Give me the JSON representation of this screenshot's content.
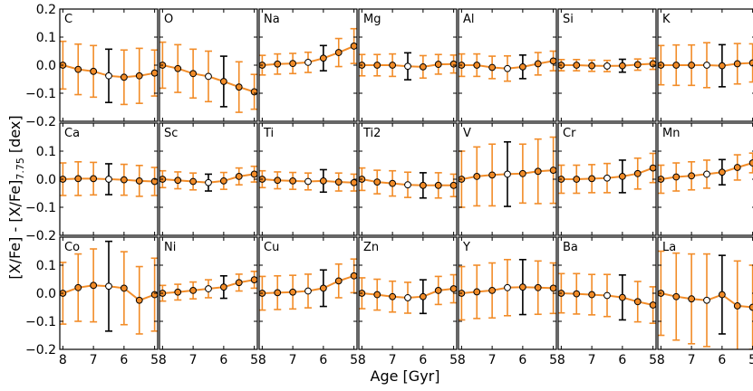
{
  "figure": {
    "xlabel": "Age [Gyr]",
    "ylabel_main": "[X/Fe] - [X/Fe]",
    "ylabel_sub": "7.75",
    "ylabel_unit": " [dex]",
    "colors": {
      "fit": "#f28c28",
      "err_orange": "#f28c28",
      "err_black": "#000000",
      "marker_fill": "#f28c28",
      "marker_open": "#ffffff",
      "marker_edge": "#000000"
    },
    "xlim": [
      8.1,
      4.9
    ],
    "ylim": [
      -0.2,
      0.2
    ],
    "xticks": [
      "8",
      "7",
      "6",
      "5"
    ],
    "xtick_values": [
      8,
      7,
      6,
      5
    ],
    "yticks": [
      "0.2",
      "0.1",
      "0.0",
      "−0.1",
      "−0.2"
    ],
    "ytick_values": [
      0.2,
      0.1,
      0.0,
      -0.1,
      -0.2
    ]
  },
  "chart_data": {
    "type": "scatter",
    "grid": false,
    "ages": [
      8.0,
      7.5,
      7.0,
      6.5,
      6.0,
      5.5,
      5.0
    ],
    "open_index": 3,
    "panels": [
      {
        "label": "C",
        "values": [
          0.0,
          -0.015,
          -0.022,
          -0.038,
          -0.043,
          -0.038,
          -0.028
        ],
        "errors": [
          0.085,
          0.09,
          0.092,
          0.095,
          0.097,
          0.098,
          0.082
        ],
        "black_index": 3
      },
      {
        "label": "O",
        "values": [
          0.0,
          -0.012,
          -0.03,
          -0.04,
          -0.058,
          -0.078,
          -0.095
        ],
        "errors": [
          0.082,
          0.085,
          0.087,
          0.09,
          0.09,
          0.09,
          0.062
        ],
        "black_index": 4
      },
      {
        "label": "Na",
        "values": [
          0.0,
          0.004,
          0.006,
          0.01,
          0.025,
          0.045,
          0.068
        ],
        "errors": [
          0.035,
          0.036,
          0.036,
          0.036,
          0.045,
          0.05,
          0.062
        ],
        "black_index": 4
      },
      {
        "label": "Mg",
        "values": [
          0.0,
          0.0,
          0.0,
          -0.004,
          -0.006,
          0.003,
          0.004
        ],
        "errors": [
          0.038,
          0.038,
          0.04,
          0.048,
          0.04,
          0.035,
          0.032
        ],
        "black_index": 3
      },
      {
        "label": "Al",
        "values": [
          0.0,
          0.0,
          -0.008,
          -0.012,
          -0.006,
          0.005,
          0.015
        ],
        "errors": [
          0.04,
          0.04,
          0.04,
          0.045,
          0.042,
          0.04,
          0.035
        ],
        "black_index": 4
      },
      {
        "label": "Si",
        "values": [
          0.0,
          0.0,
          -0.002,
          -0.003,
          -0.002,
          0.002,
          0.005
        ],
        "errors": [
          0.02,
          0.02,
          0.02,
          0.02,
          0.023,
          0.02,
          0.02
        ],
        "black_index": 4
      },
      {
        "label": "K",
        "values": [
          0.0,
          0.0,
          0.0,
          0.0,
          -0.002,
          0.005,
          0.008
        ],
        "errors": [
          0.07,
          0.072,
          0.072,
          0.08,
          0.075,
          0.072,
          0.068
        ],
        "black_index": 4
      },
      {
        "label": "Ca",
        "values": [
          0.0,
          0.002,
          0.002,
          0.0,
          -0.002,
          -0.006,
          -0.008
        ],
        "errors": [
          0.058,
          0.06,
          0.058,
          0.055,
          0.055,
          0.055,
          0.05
        ],
        "black_index": 3
      },
      {
        "label": "Sc",
        "values": [
          0.0,
          -0.004,
          -0.008,
          -0.012,
          -0.006,
          0.01,
          0.018
        ],
        "errors": [
          0.03,
          0.03,
          0.03,
          0.03,
          0.03,
          0.03,
          0.028
        ],
        "black_index": 3
      },
      {
        "label": "Ti",
        "values": [
          0.0,
          -0.004,
          -0.006,
          -0.008,
          -0.006,
          -0.01,
          -0.012
        ],
        "errors": [
          0.03,
          0.03,
          0.03,
          0.03,
          0.04,
          0.032,
          0.03
        ],
        "black_index": 4
      },
      {
        "label": "Ti2",
        "values": [
          0.0,
          -0.01,
          -0.015,
          -0.02,
          -0.022,
          -0.022,
          -0.022
        ],
        "errors": [
          0.04,
          0.042,
          0.045,
          0.045,
          0.045,
          0.045,
          0.04
        ],
        "black_index": 4
      },
      {
        "label": "V",
        "values": [
          0.0,
          0.01,
          0.015,
          0.018,
          0.02,
          0.028,
          0.032
        ],
        "errors": [
          0.1,
          0.105,
          0.11,
          0.115,
          0.105,
          0.115,
          0.118
        ],
        "black_index": 3
      },
      {
        "label": "Cr",
        "values": [
          0.0,
          0.0,
          0.002,
          0.004,
          0.01,
          0.02,
          0.04
        ],
        "errors": [
          0.05,
          0.05,
          0.05,
          0.052,
          0.058,
          0.055,
          0.052
        ],
        "black_index": 4
      },
      {
        "label": "Mn",
        "values": [
          0.0,
          0.008,
          0.012,
          0.018,
          0.025,
          0.042,
          0.058
        ],
        "errors": [
          0.05,
          0.05,
          0.05,
          0.05,
          0.045,
          0.045,
          0.035
        ],
        "black_index": 4
      },
      {
        "label": "Co",
        "values": [
          0.0,
          0.02,
          0.028,
          0.025,
          0.018,
          -0.025,
          -0.005
        ],
        "errors": [
          0.11,
          0.12,
          0.13,
          0.16,
          0.13,
          0.12,
          0.13
        ],
        "black_index": 3
      },
      {
        "label": "Ni",
        "values": [
          0.0,
          0.004,
          0.01,
          0.016,
          0.022,
          0.038,
          0.048
        ],
        "errors": [
          0.028,
          0.028,
          0.03,
          0.032,
          0.04,
          0.03,
          0.03
        ],
        "black_index": 4
      },
      {
        "label": "Cu",
        "values": [
          0.0,
          0.002,
          0.004,
          0.008,
          0.018,
          0.044,
          0.062
        ],
        "errors": [
          0.06,
          0.06,
          0.06,
          0.06,
          0.065,
          0.06,
          0.06
        ],
        "black_index": 4
      },
      {
        "label": "Zn",
        "values": [
          0.0,
          -0.005,
          -0.012,
          -0.016,
          -0.012,
          0.01,
          0.016
        ],
        "errors": [
          0.055,
          0.055,
          0.055,
          0.055,
          0.06,
          0.05,
          0.05
        ],
        "black_index": 4
      },
      {
        "label": "Y",
        "values": [
          0.0,
          0.005,
          0.01,
          0.02,
          0.022,
          0.02,
          0.018
        ],
        "errors": [
          0.095,
          0.095,
          0.098,
          0.1,
          0.098,
          0.095,
          0.09
        ],
        "black_index": 4
      },
      {
        "label": "Ba",
        "values": [
          0.0,
          -0.002,
          -0.005,
          -0.008,
          -0.015,
          -0.03,
          -0.042
        ],
        "errors": [
          0.07,
          0.072,
          0.072,
          0.075,
          0.08,
          0.072,
          0.065
        ],
        "black_index": 4
      },
      {
        "label": "La",
        "values": [
          0.0,
          -0.012,
          -0.02,
          -0.025,
          -0.005,
          -0.045,
          -0.05
        ],
        "errors": [
          0.15,
          0.155,
          0.16,
          0.165,
          0.14,
          0.16,
          0.15
        ],
        "black_index": 4
      }
    ]
  }
}
